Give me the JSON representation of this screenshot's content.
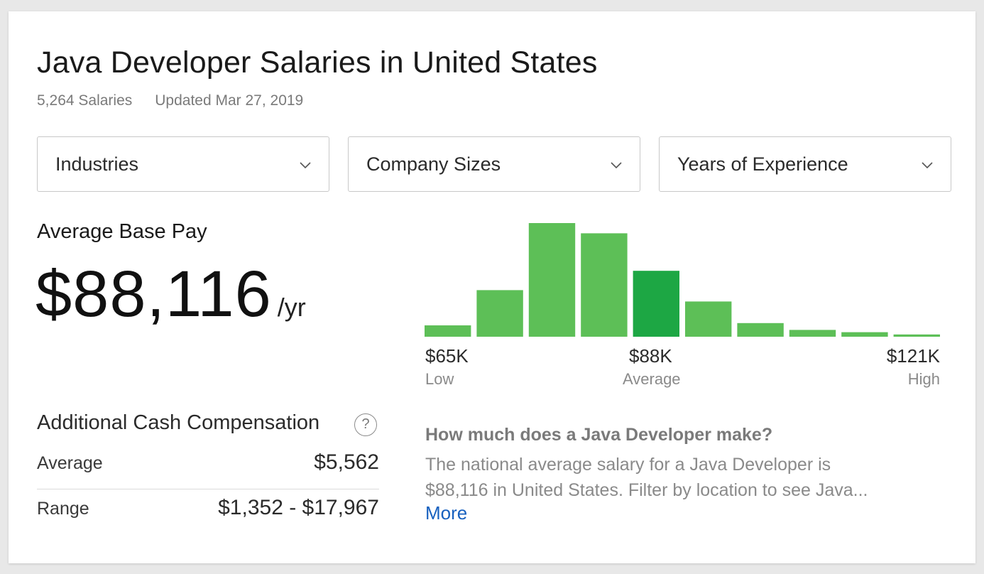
{
  "title": "Java Developer Salaries in United States",
  "meta": {
    "salaries_count": "5,264 Salaries",
    "updated": "Updated Mar 27, 2019"
  },
  "filters": [
    {
      "label": "Industries",
      "icon": "chevron-down-icon"
    },
    {
      "label": "Company Sizes",
      "icon": "chevron-down-icon"
    },
    {
      "label": "Years of Experience",
      "icon": "chevron-down-icon"
    }
  ],
  "base_pay": {
    "label": "Average Base Pay",
    "amount": "$88,116",
    "unit": "/yr"
  },
  "distribution": {
    "low_value": "$65K",
    "low_label": "Low",
    "avg_value": "$88K",
    "avg_label": "Average",
    "high_value": "$121K",
    "high_label": "High"
  },
  "chart_data": {
    "type": "bar",
    "values": [
      10,
      41,
      100,
      91,
      58,
      31,
      12,
      6,
      4,
      2
    ],
    "highlight_index": 4,
    "colors": {
      "bar": "#5dbf57",
      "highlight": "#1da744"
    }
  },
  "additional_cash": {
    "title": "Additional Cash Compensation",
    "help_icon": "question-circle-icon",
    "help_glyph": "?",
    "rows": [
      {
        "label": "Average",
        "value": "$5,562"
      },
      {
        "label": "Range",
        "value": "$1,352 - $17,967"
      }
    ]
  },
  "faq": {
    "question": "How much does a Java Developer make?",
    "answer_line1": "The national average salary for a Java Developer is",
    "answer_line2": "$88,116 in United States. Filter by location to see Java...",
    "more": "More"
  },
  "colors": {
    "link": "#1861bf",
    "muted_text": "#7a7a7a"
  }
}
